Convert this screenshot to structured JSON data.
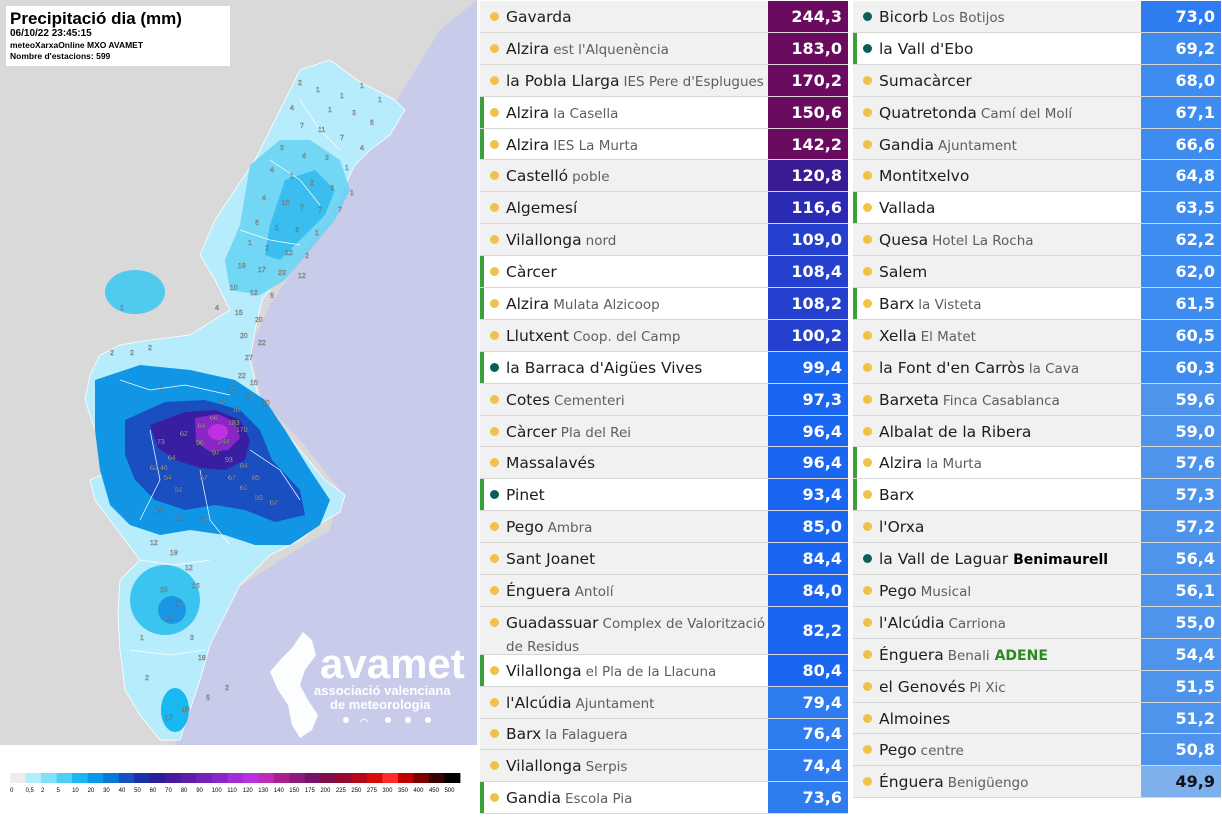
{
  "map": {
    "title": "Precipitació dia (mm)",
    "datetime": "06/10/22 23:45:15",
    "source": "meteoXarxaOnline MXO AVAMET",
    "stations": "Nombre d'estacions: 599",
    "logo_text": "avamet",
    "logo_sub1": "associació valenciana",
    "logo_sub2": "de meteorologia",
    "colors": {
      "land_outside": "#d8d8d8",
      "sea": "#c8cbe9",
      "region_base": "#b3ecfa"
    },
    "station_labels": [
      {
        "v": "2"
      },
      {
        "v": "1"
      },
      {
        "v": "1"
      },
      {
        "v": "1"
      },
      {
        "v": "1"
      },
      {
        "v": "4"
      },
      {
        "v": "1"
      },
      {
        "v": "3"
      },
      {
        "v": "5"
      },
      {
        "v": "7"
      },
      {
        "v": "11"
      },
      {
        "v": "7"
      },
      {
        "v": "4"
      },
      {
        "v": "3"
      },
      {
        "v": "4"
      },
      {
        "v": "3"
      },
      {
        "v": "1"
      },
      {
        "v": "4"
      },
      {
        "v": "1"
      },
      {
        "v": "2"
      },
      {
        "v": "8"
      },
      {
        "v": "1"
      },
      {
        "v": "4"
      },
      {
        "v": "10"
      },
      {
        "v": "7"
      },
      {
        "v": "7"
      },
      {
        "v": "7"
      },
      {
        "v": "5"
      },
      {
        "v": "1"
      },
      {
        "v": "8"
      },
      {
        "v": "1"
      },
      {
        "v": "1"
      },
      {
        "v": "2"
      },
      {
        "v": "12"
      },
      {
        "v": "2"
      },
      {
        "v": "19"
      },
      {
        "v": "17"
      },
      {
        "v": "23"
      },
      {
        "v": "12"
      },
      {
        "v": "10"
      },
      {
        "v": "12"
      },
      {
        "v": "5"
      },
      {
        "v": "4"
      },
      {
        "v": "15"
      },
      {
        "v": "20"
      },
      {
        "v": "20"
      },
      {
        "v": "22"
      },
      {
        "v": "27"
      },
      {
        "v": "22"
      },
      {
        "v": "15"
      },
      {
        "v": "15"
      },
      {
        "v": "20"
      },
      {
        "v": "10"
      },
      {
        "v": "12"
      },
      {
        "v": "16"
      },
      {
        "v": "1"
      },
      {
        "v": "2"
      },
      {
        "v": "2"
      },
      {
        "v": "2"
      },
      {
        "v": "1"
      },
      {
        "v": "73"
      },
      {
        "v": "62"
      },
      {
        "v": "64"
      },
      {
        "v": "66"
      },
      {
        "v": "244"
      },
      {
        "v": "183"
      },
      {
        "v": "170"
      },
      {
        "v": "96"
      },
      {
        "v": "97"
      },
      {
        "v": "93"
      },
      {
        "v": "84"
      },
      {
        "v": "85"
      },
      {
        "v": "64"
      },
      {
        "v": "62"
      },
      {
        "v": "54"
      },
      {
        "v": "57"
      },
      {
        "v": "67"
      },
      {
        "v": "51"
      },
      {
        "v": "61"
      },
      {
        "v": "46"
      },
      {
        "v": "59"
      },
      {
        "v": "67"
      },
      {
        "v": "24"
      },
      {
        "v": "21"
      },
      {
        "v": "13"
      },
      {
        "v": "25"
      },
      {
        "v": "20"
      },
      {
        "v": "22"
      },
      {
        "v": "16"
      },
      {
        "v": "12"
      },
      {
        "v": "19"
      },
      {
        "v": "12"
      },
      {
        "v": "17"
      },
      {
        "v": "40"
      },
      {
        "v": "18"
      },
      {
        "v": "3"
      },
      {
        "v": "5"
      },
      {
        "v": "2"
      },
      {
        "v": "1"
      },
      {
        "v": "2"
      }
    ]
  },
  "legend": {
    "ticks": [
      "0",
      "0,5",
      "2",
      "5",
      "10",
      "20",
      "30",
      "40",
      "50",
      "60",
      "70",
      "80",
      "90",
      "100",
      "110",
      "120",
      "130",
      "140",
      "150",
      "175",
      "200",
      "225",
      "250",
      "275",
      "300",
      "350",
      "400",
      "450",
      "500"
    ],
    "colors": [
      "#ededed",
      "#b3ecfa",
      "#7fe0f8",
      "#4cd1f4",
      "#1ab8f0",
      "#0a98e8",
      "#0a78d8",
      "#1450c0",
      "#1c30a8",
      "#2c1e98",
      "#441c9c",
      "#5a1ea8",
      "#7222b8",
      "#8a26c8",
      "#a22cd8",
      "#b830e0",
      "#c02ab8",
      "#a82090",
      "#8c1c7c",
      "#781268",
      "#820e48",
      "#960a30",
      "#b40818",
      "#d80a0a",
      "#ff2a2a",
      "#c00000",
      "#7a0000",
      "#3a0000",
      "#000000"
    ]
  },
  "stations_col1": [
    {
      "name": "Gavarda",
      "sub": "",
      "value": "244,3",
      "bg": "#6b0b5f",
      "dot": "yellow",
      "hl": false
    },
    {
      "name": "Alzira",
      "sub": "est l'Alquenència",
      "value": "183,0",
      "bg": "#6b0b5f",
      "dot": "yellow",
      "hl": false
    },
    {
      "name": "la Pobla Llarga",
      "sub": "IES Pere d'Esplugues",
      "value": "170,2",
      "bg": "#6b0b5f",
      "dot": "yellow",
      "hl": false
    },
    {
      "name": "Alzira",
      "sub": "la Casella",
      "value": "150,6",
      "bg": "#6b0b5f",
      "dot": "yellow",
      "hl": true
    },
    {
      "name": "Alzira",
      "sub": "IES La Murta",
      "value": "142,2",
      "bg": "#6b0b5f",
      "dot": "yellow",
      "hl": true
    },
    {
      "name": "Castelló",
      "sub": "poble",
      "value": "120,8",
      "bg": "#3a1b94",
      "dot": "yellow",
      "hl": false
    },
    {
      "name": "Algemesí",
      "sub": "",
      "value": "116,6",
      "bg": "#2b2ab4",
      "dot": "yellow",
      "hl": false
    },
    {
      "name": "Vilallonga",
      "sub": "nord",
      "value": "109,0",
      "bg": "#2540cf",
      "dot": "yellow",
      "hl": false
    },
    {
      "name": "Càrcer",
      "sub": "",
      "value": "108,4",
      "bg": "#2540cf",
      "dot": "yellow",
      "hl": true
    },
    {
      "name": "Alzira",
      "sub": "Mulata Alzicoop",
      "value": "108,2",
      "bg": "#2540cf",
      "dot": "yellow",
      "hl": true
    },
    {
      "name": "Llutxent",
      "sub": "Coop. del Camp",
      "value": "100,2",
      "bg": "#2540cf",
      "dot": "yellow",
      "hl": false
    },
    {
      "name": "la Barraca d'Aigües Vives",
      "sub": "",
      "value": "99,4",
      "bg": "#1a66f0",
      "dot": "green",
      "hl": true
    },
    {
      "name": "Cotes",
      "sub": "Cementeri",
      "value": "97,3",
      "bg": "#1a66f0",
      "dot": "yellow",
      "hl": false
    },
    {
      "name": "Càrcer",
      "sub": "Pla del Rei",
      "value": "96,4",
      "bg": "#1a66f0",
      "dot": "yellow",
      "hl": false
    },
    {
      "name": "Massalavés",
      "sub": "",
      "value": "96,4",
      "bg": "#1a66f0",
      "dot": "yellow",
      "hl": false
    },
    {
      "name": "Pinet",
      "sub": "",
      "value": "93,4",
      "bg": "#1a66f0",
      "dot": "green",
      "hl": true
    },
    {
      "name": "Pego",
      "sub": "Ambra",
      "value": "85,0",
      "bg": "#1a66f0",
      "dot": "yellow",
      "hl": false
    },
    {
      "name": "Sant Joanet",
      "sub": "",
      "value": "84,4",
      "bg": "#1a66f0",
      "dot": "yellow",
      "hl": false
    },
    {
      "name": "Énguera",
      "sub": "Antolí",
      "value": "84,0",
      "bg": "#1a66f0",
      "dot": "yellow",
      "hl": false
    },
    {
      "name": "Guadassuar",
      "sub": "Complex de Valorització de Residus",
      "value": "82,2",
      "bg": "#1a66f0",
      "dot": "yellow",
      "hl": false,
      "tall": true
    },
    {
      "name": "Vilallonga",
      "sub": "el Pla de la Llacuna",
      "value": "80,4",
      "bg": "#1a66f0",
      "dot": "yellow",
      "hl": true
    },
    {
      "name": "l'Alcúdia",
      "sub": "Ajuntament",
      "value": "79,4",
      "bg": "#2f7cf0",
      "dot": "yellow",
      "hl": false
    },
    {
      "name": "Barx",
      "sub": "la Falaguera",
      "value": "76,4",
      "bg": "#2f7cf0",
      "dot": "yellow",
      "hl": false
    },
    {
      "name": "Vilallonga",
      "sub": "Serpis",
      "value": "74,4",
      "bg": "#2f7cf0",
      "dot": "yellow",
      "hl": false
    },
    {
      "name": "Gandia",
      "sub": "Escola Pia",
      "value": "73,6",
      "bg": "#2f7cf0",
      "dot": "yellow",
      "hl": true
    }
  ],
  "stations_col2": [
    {
      "name": "Bicorb",
      "sub": "Los Botijos",
      "value": "73,0",
      "bg": "#2f7cf0",
      "dot": "green",
      "hl": false
    },
    {
      "name": "la Vall d'Ebo",
      "sub": "",
      "value": "69,2",
      "bg": "#3f8cf0",
      "dot": "green",
      "hl": true
    },
    {
      "name": "Sumacàrcer",
      "sub": "",
      "value": "68,0",
      "bg": "#3f8cf0",
      "dot": "yellow",
      "hl": false
    },
    {
      "name": "Quatretonda",
      "sub": "Camí del Molí",
      "value": "67,1",
      "bg": "#3f8cf0",
      "dot": "yellow",
      "hl": false
    },
    {
      "name": "Gandia",
      "sub": "Ajuntament",
      "value": "66,6",
      "bg": "#3f8cf0",
      "dot": "yellow",
      "hl": false
    },
    {
      "name": "Montitxelvo",
      "sub": "",
      "value": "64,8",
      "bg": "#3f8cf0",
      "dot": "yellow",
      "hl": false
    },
    {
      "name": "Vallada",
      "sub": "",
      "value": "63,5",
      "bg": "#3f8cf0",
      "dot": "yellow",
      "hl": true
    },
    {
      "name": "Quesa",
      "sub": "Hotel La Rocha",
      "value": "62,2",
      "bg": "#3f8cf0",
      "dot": "yellow",
      "hl": false
    },
    {
      "name": "Salem",
      "sub": "",
      "value": "62,0",
      "bg": "#3f8cf0",
      "dot": "yellow",
      "hl": false
    },
    {
      "name": "Barx",
      "sub": "la Visteta",
      "value": "61,5",
      "bg": "#3f8cf0",
      "dot": "yellow",
      "hl": true
    },
    {
      "name": "Xella",
      "sub": "El Matet",
      "value": "60,5",
      "bg": "#3f8cf0",
      "dot": "yellow",
      "hl": false
    },
    {
      "name": "la Font d'en Carròs",
      "sub": "la Cava",
      "value": "60,3",
      "bg": "#3f8cf0",
      "dot": "yellow",
      "hl": false
    },
    {
      "name": "Barxeta",
      "sub": "Finca Casablanca",
      "value": "59,6",
      "bg": "#4f94ec",
      "dot": "yellow",
      "hl": false
    },
    {
      "name": "Albalat de la Ribera",
      "sub": "",
      "value": "59,0",
      "bg": "#4f94ec",
      "dot": "yellow",
      "hl": false
    },
    {
      "name": "Alzira",
      "sub": "la Murta",
      "value": "57,6",
      "bg": "#4f94ec",
      "dot": "yellow",
      "hl": true
    },
    {
      "name": "Barx",
      "sub": "",
      "value": "57,3",
      "bg": "#4f94ec",
      "dot": "yellow",
      "hl": true
    },
    {
      "name": "l'Orxa",
      "sub": "",
      "value": "57,2",
      "bg": "#4f94ec",
      "dot": "yellow",
      "hl": false
    },
    {
      "name": "la Vall de Laguar",
      "sub": "",
      "extra": "Benimaurell",
      "extra_color": "black",
      "value": "56,4",
      "bg": "#4f94ec",
      "dot": "green",
      "hl": false
    },
    {
      "name": "Pego",
      "sub": "Musical",
      "value": "56,1",
      "bg": "#4f94ec",
      "dot": "yellow",
      "hl": false
    },
    {
      "name": "l'Alcúdia",
      "sub": "Carriona",
      "value": "55,0",
      "bg": "#4f94ec",
      "dot": "yellow",
      "hl": false
    },
    {
      "name": "Énguera",
      "sub": "Benali",
      "extra": "ADENE",
      "extra_color": "green",
      "value": "54,4",
      "bg": "#4f94ec",
      "dot": "yellow",
      "hl": false
    },
    {
      "name": "el Genovés",
      "sub": "Pi Xic",
      "value": "51,5",
      "bg": "#4f94ec",
      "dot": "yellow",
      "hl": false
    },
    {
      "name": "Almoines",
      "sub": "",
      "value": "51,2",
      "bg": "#4f94ec",
      "dot": "yellow",
      "hl": false
    },
    {
      "name": "Pego",
      "sub": "centre",
      "value": "50,8",
      "bg": "#4f94ec",
      "dot": "yellow",
      "hl": false
    },
    {
      "name": "Énguera",
      "sub": "Benigüengo",
      "value": "49,9",
      "bg": "#7fb0ee",
      "dot": "yellow",
      "hl": false,
      "dark_value": true
    }
  ]
}
